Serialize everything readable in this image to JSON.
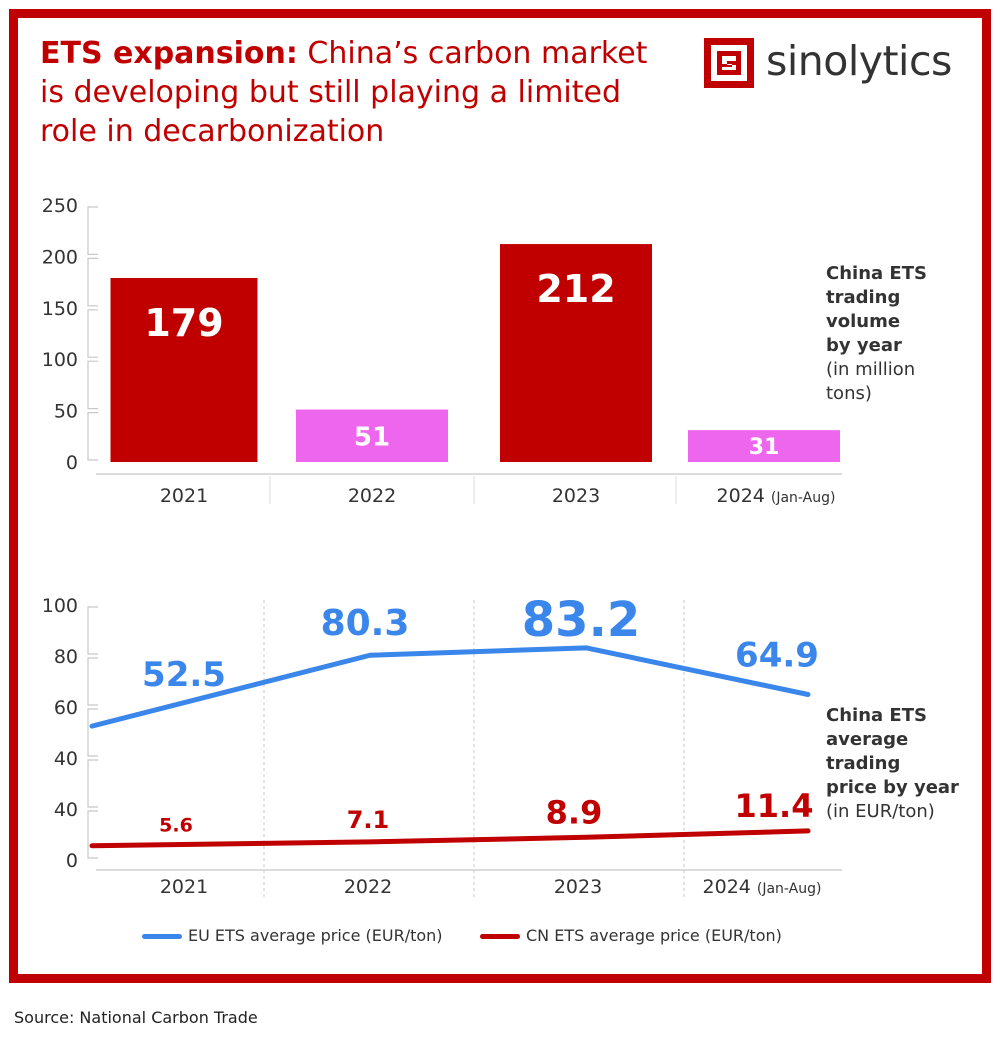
{
  "title": {
    "bold": "ETS expansion:",
    "rest": " China’s carbon market is developing but still playing a limited role in decarbonization"
  },
  "logo": {
    "text": "sinolytics",
    "icon": "sinolytics-logo-icon"
  },
  "colors": {
    "frame": "#c00000",
    "bar_highlight": "#ee66ee",
    "eu_line": "#3a86ea",
    "cn_line": "#c00000"
  },
  "source": "Source: National Carbon Trade",
  "volume_chart": {
    "label_bold": [
      "China ETS",
      "trading",
      "volume",
      "by year"
    ],
    "label_plain": [
      "(in million",
      "tons)"
    ]
  },
  "price_chart": {
    "label_bold": [
      "China ETS",
      "average",
      "trading",
      "price by year"
    ],
    "label_plain": [
      "(in EUR/ton)"
    ]
  },
  "legend": {
    "eu": "EU ETS average price (EUR/ton)",
    "cn": "CN ETS average price (EUR/ton)"
  },
  "chart_data": [
    {
      "type": "bar",
      "categories": [
        "2021",
        "2022",
        "2023",
        "2024"
      ],
      "category_suffix": [
        "",
        "",
        "",
        "(Jan-Aug)"
      ],
      "values": [
        179,
        51,
        212,
        31
      ],
      "data_labels": [
        "179",
        "51",
        "212",
        "31"
      ],
      "bar_colors": [
        "#c00000",
        "#ee66ee",
        "#c00000",
        "#ee66ee"
      ],
      "yticks": [
        "250",
        "200",
        "150",
        "100",
        "50",
        "0"
      ],
      "ylim": [
        0,
        250
      ],
      "grid": false
    },
    {
      "type": "line",
      "categories": [
        "2021",
        "2022",
        "2023",
        "2024"
      ],
      "category_suffix": [
        "",
        "",
        "",
        "(Jan-Aug)"
      ],
      "series": [
        {
          "name": "EU ETS average price (EUR/ton)",
          "color": "#3a86ea",
          "values": [
            52.5,
            80.3,
            83.2,
            64.9
          ],
          "labels": [
            "52.5",
            "80.3",
            "83.2",
            "64.9"
          ]
        },
        {
          "name": "CN ETS average price (EUR/ton)",
          "color": "#c00000",
          "values": [
            5.6,
            7.1,
            8.9,
            11.4
          ],
          "labels": [
            "5.6",
            "7.1",
            "8.9",
            "11.4"
          ]
        }
      ],
      "yticks": [
        "100",
        "80",
        "60",
        "40",
        "40",
        "0"
      ],
      "ylim": [
        0,
        100
      ],
      "grid": false,
      "legend_position": "bottom"
    }
  ]
}
